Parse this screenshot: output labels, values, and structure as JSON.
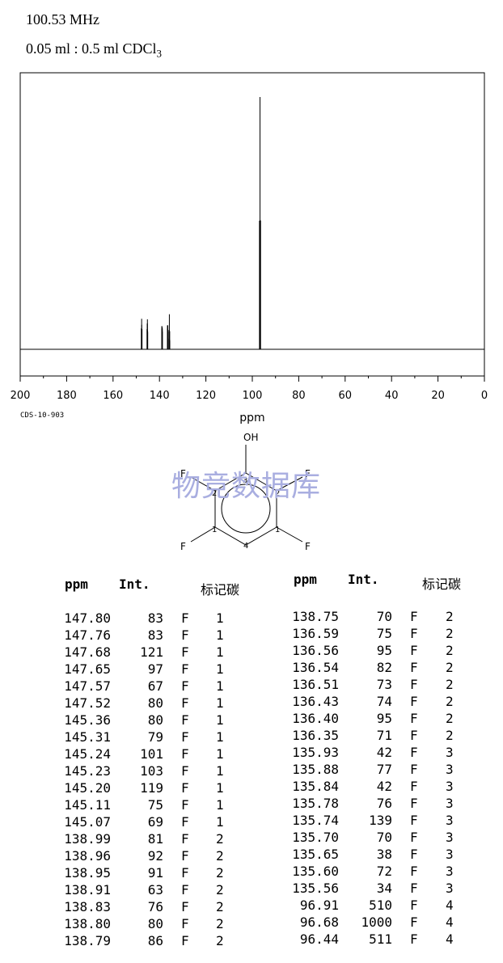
{
  "header": {
    "frequency": "100.53 MHz",
    "sample_prefix": "0.05 ml : 0.5 ml CDCl",
    "sample_subscript": "3"
  },
  "spectrum_code": "CDS-10-903",
  "chart_data": {
    "type": "nmr-stick-spectrum",
    "xlabel": "ppm",
    "xlim": [
      200,
      0
    ],
    "x_ticks": [
      200,
      180,
      160,
      140,
      120,
      100,
      80,
      60,
      40,
      20,
      0
    ],
    "peaks": [
      {
        "ppm": 147.8,
        "int": 83
      },
      {
        "ppm": 147.76,
        "int": 83
      },
      {
        "ppm": 147.68,
        "int": 121
      },
      {
        "ppm": 147.65,
        "int": 97
      },
      {
        "ppm": 147.57,
        "int": 67
      },
      {
        "ppm": 147.52,
        "int": 80
      },
      {
        "ppm": 145.36,
        "int": 80
      },
      {
        "ppm": 145.31,
        "int": 79
      },
      {
        "ppm": 145.24,
        "int": 101
      },
      {
        "ppm": 145.23,
        "int": 103
      },
      {
        "ppm": 145.2,
        "int": 119
      },
      {
        "ppm": 145.11,
        "int": 75
      },
      {
        "ppm": 145.07,
        "int": 69
      },
      {
        "ppm": 138.99,
        "int": 81
      },
      {
        "ppm": 138.96,
        "int": 92
      },
      {
        "ppm": 138.95,
        "int": 91
      },
      {
        "ppm": 138.91,
        "int": 63
      },
      {
        "ppm": 138.83,
        "int": 76
      },
      {
        "ppm": 138.8,
        "int": 80
      },
      {
        "ppm": 138.79,
        "int": 86
      },
      {
        "ppm": 138.75,
        "int": 70
      },
      {
        "ppm": 136.59,
        "int": 75
      },
      {
        "ppm": 136.56,
        "int": 95
      },
      {
        "ppm": 136.54,
        "int": 82
      },
      {
        "ppm": 136.51,
        "int": 73
      },
      {
        "ppm": 136.43,
        "int": 74
      },
      {
        "ppm": 136.4,
        "int": 95
      },
      {
        "ppm": 136.35,
        "int": 71
      },
      {
        "ppm": 135.93,
        "int": 42
      },
      {
        "ppm": 135.88,
        "int": 77
      },
      {
        "ppm": 135.84,
        "int": 42
      },
      {
        "ppm": 135.78,
        "int": 76
      },
      {
        "ppm": 135.74,
        "int": 139
      },
      {
        "ppm": 135.7,
        "int": 70
      },
      {
        "ppm": 135.65,
        "int": 38
      },
      {
        "ppm": 135.6,
        "int": 72
      },
      {
        "ppm": 135.56,
        "int": 34
      },
      {
        "ppm": 96.91,
        "int": 510
      },
      {
        "ppm": 96.68,
        "int": 1000
      },
      {
        "ppm": 96.44,
        "int": 511
      }
    ]
  },
  "molecule": {
    "oh": "OH",
    "f_left_top": "F",
    "f_right_top": "F",
    "f_left_bottom": "F",
    "f_right_bottom": "F",
    "n3": "3",
    "n2_left": "2",
    "n2_right": "2",
    "n1_left": "1",
    "n1_right": "1",
    "n4": "4"
  },
  "watermark": "物竞数据库",
  "table": {
    "headers": {
      "ppm": "ppm",
      "int": "Int.",
      "label": "标记碳"
    },
    "left_rows": [
      [
        "147.80",
        "83",
        "F",
        "1"
      ],
      [
        "147.76",
        "83",
        "F",
        "1"
      ],
      [
        "147.68",
        "121",
        "F",
        "1"
      ],
      [
        "147.65",
        "97",
        "F",
        "1"
      ],
      [
        "147.57",
        "67",
        "F",
        "1"
      ],
      [
        "147.52",
        "80",
        "F",
        "1"
      ],
      [
        "145.36",
        "80",
        "F",
        "1"
      ],
      [
        "145.31",
        "79",
        "F",
        "1"
      ],
      [
        "145.24",
        "101",
        "F",
        "1"
      ],
      [
        "145.23",
        "103",
        "F",
        "1"
      ],
      [
        "145.20",
        "119",
        "F",
        "1"
      ],
      [
        "145.11",
        "75",
        "F",
        "1"
      ],
      [
        "145.07",
        "69",
        "F",
        "1"
      ],
      [
        "138.99",
        "81",
        "F",
        "2"
      ],
      [
        "138.96",
        "92",
        "F",
        "2"
      ],
      [
        "138.95",
        "91",
        "F",
        "2"
      ],
      [
        "138.91",
        "63",
        "F",
        "2"
      ],
      [
        "138.83",
        "76",
        "F",
        "2"
      ],
      [
        "138.80",
        "80",
        "F",
        "2"
      ],
      [
        "138.79",
        "86",
        "F",
        "2"
      ]
    ],
    "right_rows": [
      [
        "138.75",
        "70",
        "F",
        "2"
      ],
      [
        "136.59",
        "75",
        "F",
        "2"
      ],
      [
        "136.56",
        "95",
        "F",
        "2"
      ],
      [
        "136.54",
        "82",
        "F",
        "2"
      ],
      [
        "136.51",
        "73",
        "F",
        "2"
      ],
      [
        "136.43",
        "74",
        "F",
        "2"
      ],
      [
        "136.40",
        "95",
        "F",
        "2"
      ],
      [
        "136.35",
        "71",
        "F",
        "2"
      ],
      [
        "135.93",
        "42",
        "F",
        "3"
      ],
      [
        "135.88",
        "77",
        "F",
        "3"
      ],
      [
        "135.84",
        "42",
        "F",
        "3"
      ],
      [
        "135.78",
        "76",
        "F",
        "3"
      ],
      [
        "135.74",
        "139",
        "F",
        "3"
      ],
      [
        "135.70",
        "70",
        "F",
        "3"
      ],
      [
        "135.65",
        "38",
        "F",
        "3"
      ],
      [
        "135.60",
        "72",
        "F",
        "3"
      ],
      [
        "135.56",
        "34",
        "F",
        "3"
      ],
      [
        "96.91",
        "510",
        "F",
        "4"
      ],
      [
        "96.68",
        "1000",
        "F",
        "4"
      ],
      [
        "96.44",
        "511",
        "F",
        "4"
      ]
    ]
  }
}
